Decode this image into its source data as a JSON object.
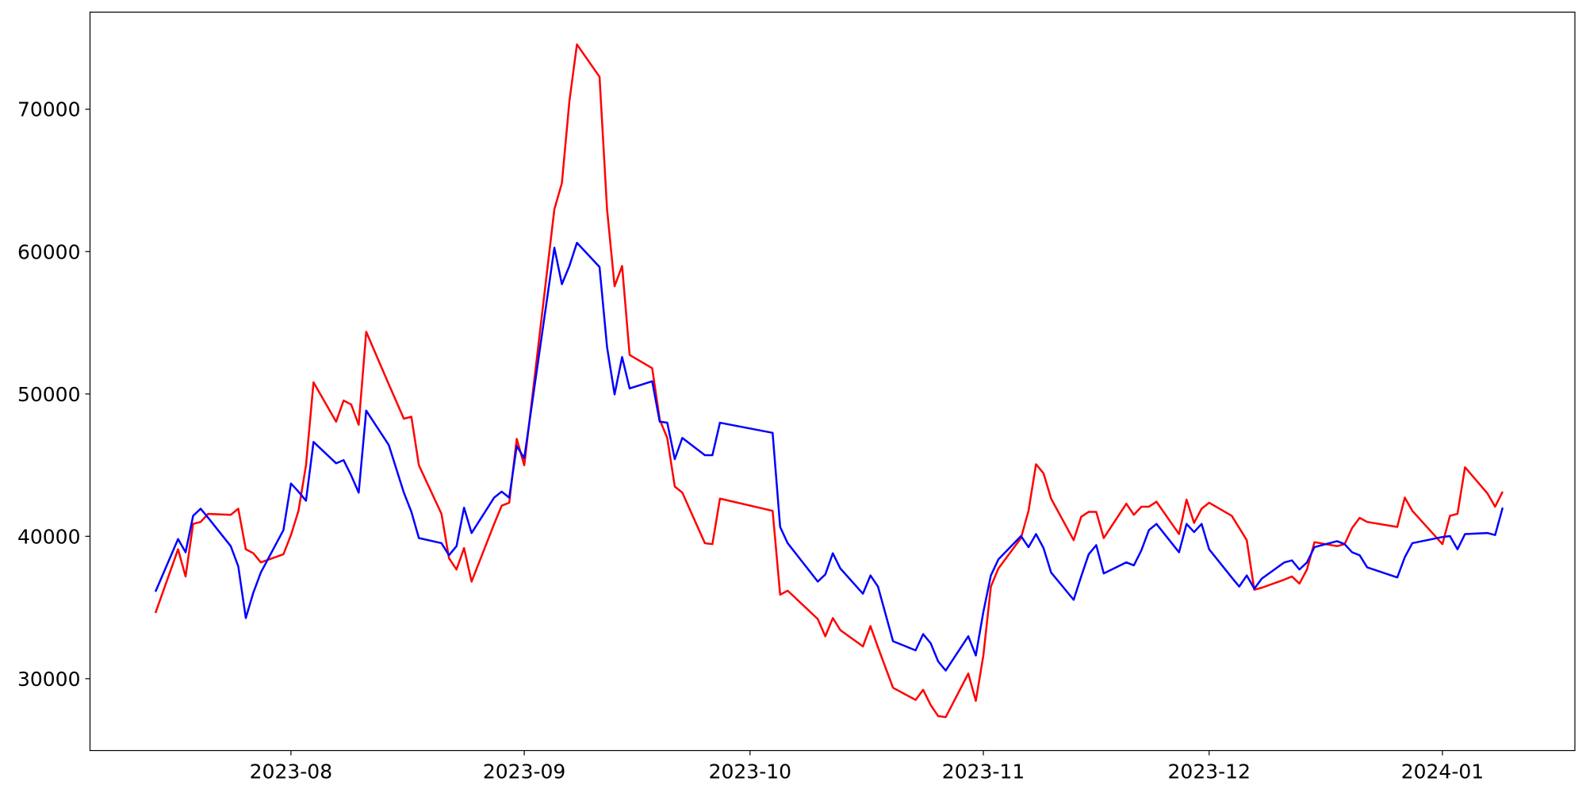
{
  "chart_data": {
    "type": "line",
    "x": [
      13,
      16,
      17,
      18,
      19,
      20,
      23,
      24,
      25,
      26,
      27,
      30,
      31,
      32,
      33,
      34,
      37,
      38,
      39,
      40,
      41,
      44,
      46,
      47,
      48,
      51,
      52,
      53,
      54,
      55,
      58,
      59,
      60,
      61,
      62,
      66,
      67,
      68,
      69,
      72,
      73,
      74,
      75,
      76,
      79,
      80,
      81,
      82,
      83,
      86,
      87,
      88,
      95,
      96,
      97,
      101,
      102,
      103,
      104,
      107,
      108,
      109,
      111,
      114,
      115,
      116,
      117,
      118,
      121,
      122,
      123,
      124,
      125,
      128,
      129,
      130,
      131,
      132,
      135,
      136,
      137,
      138,
      139,
      142,
      143,
      144,
      145,
      146,
      149,
      150,
      151,
      152,
      153,
      156,
      157,
      158,
      159,
      160,
      163,
      164,
      165,
      166,
      167,
      170,
      171,
      172,
      173,
      174,
      178,
      179,
      180,
      184,
      185,
      186,
      187,
      190,
      191,
      192
    ],
    "series": [
      {
        "color": "red",
        "values": [
          34620,
          39090,
          37180,
          40870,
          41010,
          41580,
          41510,
          41940,
          39090,
          38810,
          38170,
          38740,
          40090,
          41790,
          44990,
          50820,
          48050,
          49540,
          49260,
          47830,
          54370,
          50680,
          48260,
          48400,
          44990,
          41580,
          38460,
          37670,
          39170,
          36820,
          40870,
          42150,
          42360,
          46840,
          44990,
          62970,
          64810,
          70570,
          74550,
          72280,
          62970,
          57570,
          58990,
          52740,
          51810,
          48190,
          46910,
          43500,
          43070,
          39520,
          39450,
          42650,
          41790,
          35900,
          36180,
          34190,
          32980,
          34260,
          33410,
          32270,
          33690,
          32200,
          29360,
          28510,
          29220,
          28150,
          27370,
          27300,
          30360,
          28440,
          31630,
          36470,
          37740,
          39880,
          41790,
          45060,
          44420,
          42650,
          39730,
          41370,
          41720,
          41720,
          39880,
          42290,
          41510,
          42080,
          42080,
          42430,
          40160,
          42580,
          40940,
          41940,
          42360,
          41440,
          40590,
          39730,
          36250,
          36390,
          36960,
          37180,
          36680,
          37670,
          39590,
          39310,
          39450,
          40590,
          41300,
          41010,
          40660,
          42720,
          41790,
          39450,
          41440,
          41580,
          44850,
          43000,
          42080,
          43140
        ]
      },
      {
        "color": "blue",
        "values": [
          36110,
          39810,
          38880,
          41440,
          41940,
          41300,
          39310,
          37890,
          34260,
          36040,
          37460,
          40440,
          43710,
          43140,
          42500,
          46630,
          45130,
          45350,
          44280,
          43070,
          48830,
          46410,
          43070,
          41720,
          39880,
          39520,
          38670,
          39310,
          42010,
          40230,
          42720,
          43140,
          42720,
          46340,
          45490,
          60270,
          57710,
          58990,
          60620,
          58920,
          53300,
          49970,
          52590,
          50390,
          50890,
          48050,
          47980,
          45420,
          46910,
          45700,
          45700,
          47980,
          47270,
          40660,
          39520,
          36820,
          37320,
          38810,
          37740,
          35970,
          37250,
          36470,
          32630,
          31990,
          33130,
          32490,
          31210,
          30570,
          32980,
          31630,
          34690,
          37250,
          38380,
          40020,
          39240,
          40160,
          39170,
          37460,
          35540,
          37180,
          38740,
          39380,
          37390,
          38170,
          37960,
          39020,
          40440,
          40870,
          38880,
          40870,
          40300,
          40870,
          39090,
          37110,
          36470,
          37250,
          36320,
          37030,
          38170,
          38310,
          37670,
          38170,
          39240,
          39660,
          39450,
          38880,
          38670,
          37820,
          37110,
          38530,
          39520,
          39950,
          40020,
          39090,
          40160,
          40230,
          40090,
          42010
        ]
      }
    ],
    "xlim": [
      4.3,
      201.6
    ],
    "xticks": [
      {
        "value": 31,
        "label": "2023-08"
      },
      {
        "value": 62,
        "label": "2023-09"
      },
      {
        "value": 92,
        "label": "2023-10"
      },
      {
        "value": 123,
        "label": "2023-11"
      },
      {
        "value": 153,
        "label": "2023-12"
      },
      {
        "value": 184,
        "label": "2024-01"
      }
    ],
    "ylim": [
      24950,
      76820
    ],
    "yticks": [
      30000,
      40000,
      50000,
      60000,
      70000
    ],
    "grid": false
  }
}
